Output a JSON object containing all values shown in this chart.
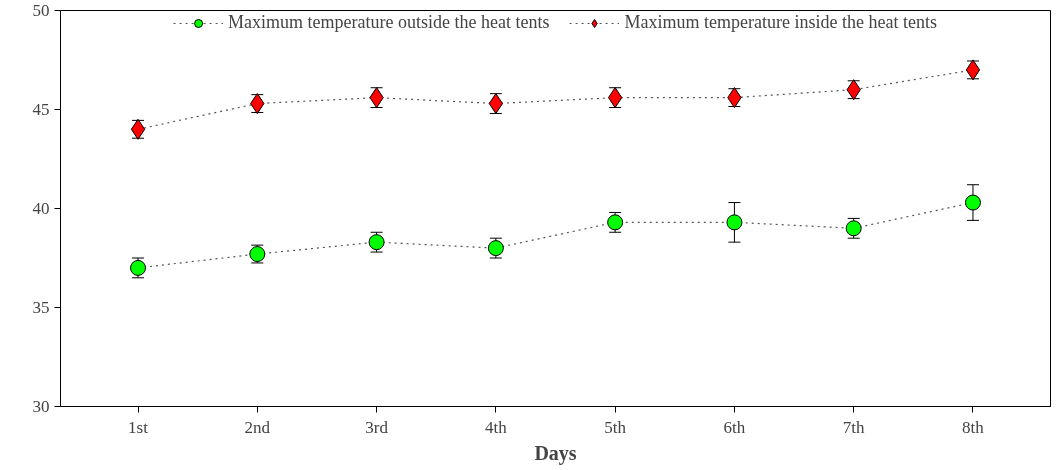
{
  "chart_data": {
    "type": "line",
    "xlabel": "Days",
    "categories": [
      "1st",
      "2nd",
      "3rd",
      "4th",
      "5th",
      "6th",
      "7th",
      "8th"
    ],
    "ylim": [
      30,
      50
    ],
    "yticks": [
      30,
      35,
      40,
      45,
      50
    ],
    "grid": false,
    "legend": "top",
    "line_style": "dotted",
    "series": [
      {
        "name": "Maximum temperature outside the heat tents",
        "color": "#00ff00",
        "marker": "circle",
        "values": [
          37.0,
          37.7,
          38.3,
          38.0,
          39.3,
          39.3,
          39.0,
          40.3
        ],
        "errors": [
          0.5,
          0.45,
          0.5,
          0.5,
          0.5,
          1.0,
          0.5,
          0.9
        ]
      },
      {
        "name": "Maximum temperature inside the heat tents",
        "color": "#ff0000",
        "marker": "diamond",
        "values": [
          44.0,
          45.3,
          45.6,
          45.3,
          45.6,
          45.6,
          46.0,
          47.0
        ],
        "errors": [
          0.45,
          0.45,
          0.5,
          0.5,
          0.5,
          0.45,
          0.45,
          0.45
        ]
      }
    ]
  }
}
